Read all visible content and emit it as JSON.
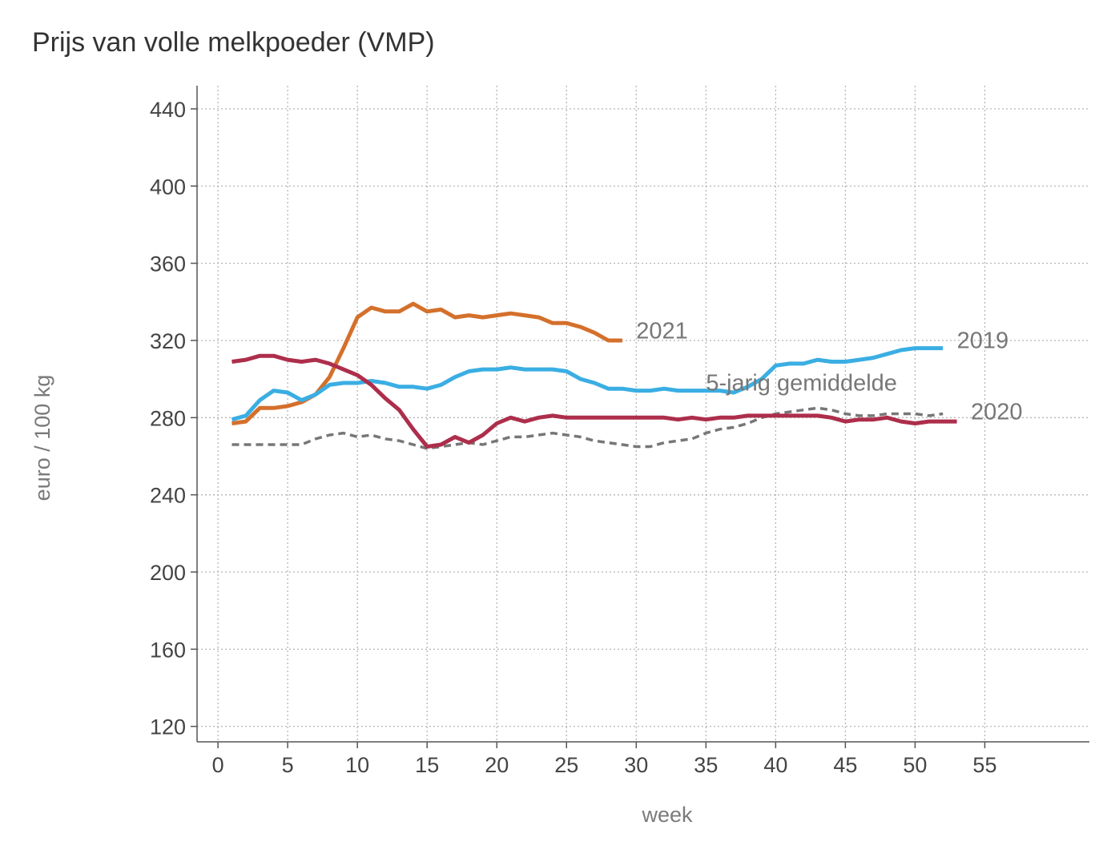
{
  "chart_data": {
    "type": "line",
    "title": "Prijs van volle melkpoeder (VMP)",
    "xlabel": "week",
    "ylabel": "euro / 100 kg",
    "xlim": [
      -1.5,
      62.5
    ],
    "ylim": [
      112,
      452
    ],
    "xticks": [
      0,
      5,
      10,
      15,
      20,
      25,
      30,
      35,
      40,
      45,
      50,
      55
    ],
    "yticks": [
      120,
      160,
      200,
      240,
      280,
      320,
      360,
      400,
      440
    ],
    "grid": true,
    "legend": "labels at line ends",
    "series": [
      {
        "name": "2021",
        "color": "#d4702b",
        "dashed": false,
        "label_pos": [
          30,
          321
        ],
        "x": [
          1,
          2,
          3,
          4,
          5,
          6,
          7,
          8,
          9,
          10,
          11,
          12,
          13,
          14,
          15,
          16,
          17,
          18,
          19,
          20,
          21,
          22,
          23,
          24,
          25,
          26,
          27,
          28,
          29
        ],
        "values": [
          277,
          278,
          285,
          285,
          286,
          288,
          292,
          301,
          316,
          332,
          337,
          335,
          335,
          339,
          335,
          336,
          332,
          333,
          332,
          333,
          334,
          333,
          332,
          329,
          329,
          327,
          324,
          320,
          320
        ]
      },
      {
        "name": "2019",
        "color": "#3aaee3",
        "dashed": false,
        "label_pos": [
          53,
          316
        ],
        "x": [
          1,
          2,
          3,
          4,
          5,
          6,
          7,
          8,
          9,
          10,
          11,
          12,
          13,
          14,
          15,
          16,
          17,
          18,
          19,
          20,
          21,
          22,
          23,
          24,
          25,
          26,
          27,
          28,
          29,
          30,
          31,
          32,
          33,
          34,
          35,
          36,
          37,
          38,
          39,
          40,
          41,
          42,
          43,
          44,
          45,
          46,
          47,
          48,
          49,
          50,
          51,
          52
        ],
        "values": [
          279,
          281,
          289,
          294,
          293,
          289,
          292,
          297,
          298,
          298,
          299,
          298,
          296,
          296,
          295,
          297,
          301,
          304,
          305,
          305,
          306,
          305,
          305,
          305,
          304,
          300,
          298,
          295,
          295,
          294,
          294,
          295,
          294,
          294,
          294,
          294,
          293,
          296,
          300,
          307,
          308,
          308,
          310,
          309,
          309,
          310,
          311,
          313,
          315,
          316,
          316,
          316
        ]
      },
      {
        "name": "2020",
        "color": "#ad2e4b",
        "dashed": false,
        "label_pos": [
          54,
          279
        ],
        "x": [
          1,
          2,
          3,
          4,
          5,
          6,
          7,
          8,
          9,
          10,
          11,
          12,
          13,
          14,
          15,
          16,
          17,
          18,
          19,
          20,
          21,
          22,
          23,
          24,
          25,
          26,
          27,
          28,
          29,
          30,
          31,
          32,
          33,
          34,
          35,
          36,
          37,
          38,
          39,
          40,
          41,
          42,
          43,
          44,
          45,
          46,
          47,
          48,
          49,
          50,
          51,
          52,
          53
        ],
        "values": [
          309,
          310,
          312,
          312,
          310,
          309,
          310,
          308,
          305,
          302,
          297,
          290,
          284,
          274,
          265,
          266,
          270,
          267,
          271,
          277,
          280,
          278,
          280,
          281,
          280,
          280,
          280,
          280,
          280,
          280,
          280,
          280,
          279,
          280,
          279,
          280,
          280,
          281,
          281,
          281,
          281,
          281,
          281,
          280,
          278,
          279,
          279,
          280,
          278,
          277,
          278,
          278,
          278
        ]
      },
      {
        "name": "5-jarig gemiddelde",
        "color": "#777777",
        "dashed": true,
        "label_pos": [
          35,
          294
        ],
        "x": [
          1,
          2,
          3,
          4,
          5,
          6,
          7,
          8,
          9,
          10,
          11,
          12,
          13,
          14,
          15,
          16,
          17,
          18,
          19,
          20,
          21,
          22,
          23,
          24,
          25,
          26,
          27,
          28,
          29,
          30,
          31,
          32,
          33,
          34,
          35,
          36,
          37,
          38,
          39,
          40,
          41,
          42,
          43,
          44,
          45,
          46,
          47,
          48,
          49,
          50,
          51,
          52
        ],
        "values": [
          266,
          266,
          266,
          266,
          266,
          266,
          269,
          271,
          272,
          270,
          271,
          269,
          268,
          266,
          264,
          265,
          266,
          267,
          266,
          268,
          270,
          270,
          271,
          272,
          271,
          270,
          268,
          267,
          266,
          265,
          265,
          267,
          268,
          269,
          272,
          274,
          275,
          277,
          280,
          282,
          283,
          284,
          285,
          284,
          282,
          281,
          281,
          282,
          282,
          282,
          281,
          282
        ]
      }
    ]
  }
}
